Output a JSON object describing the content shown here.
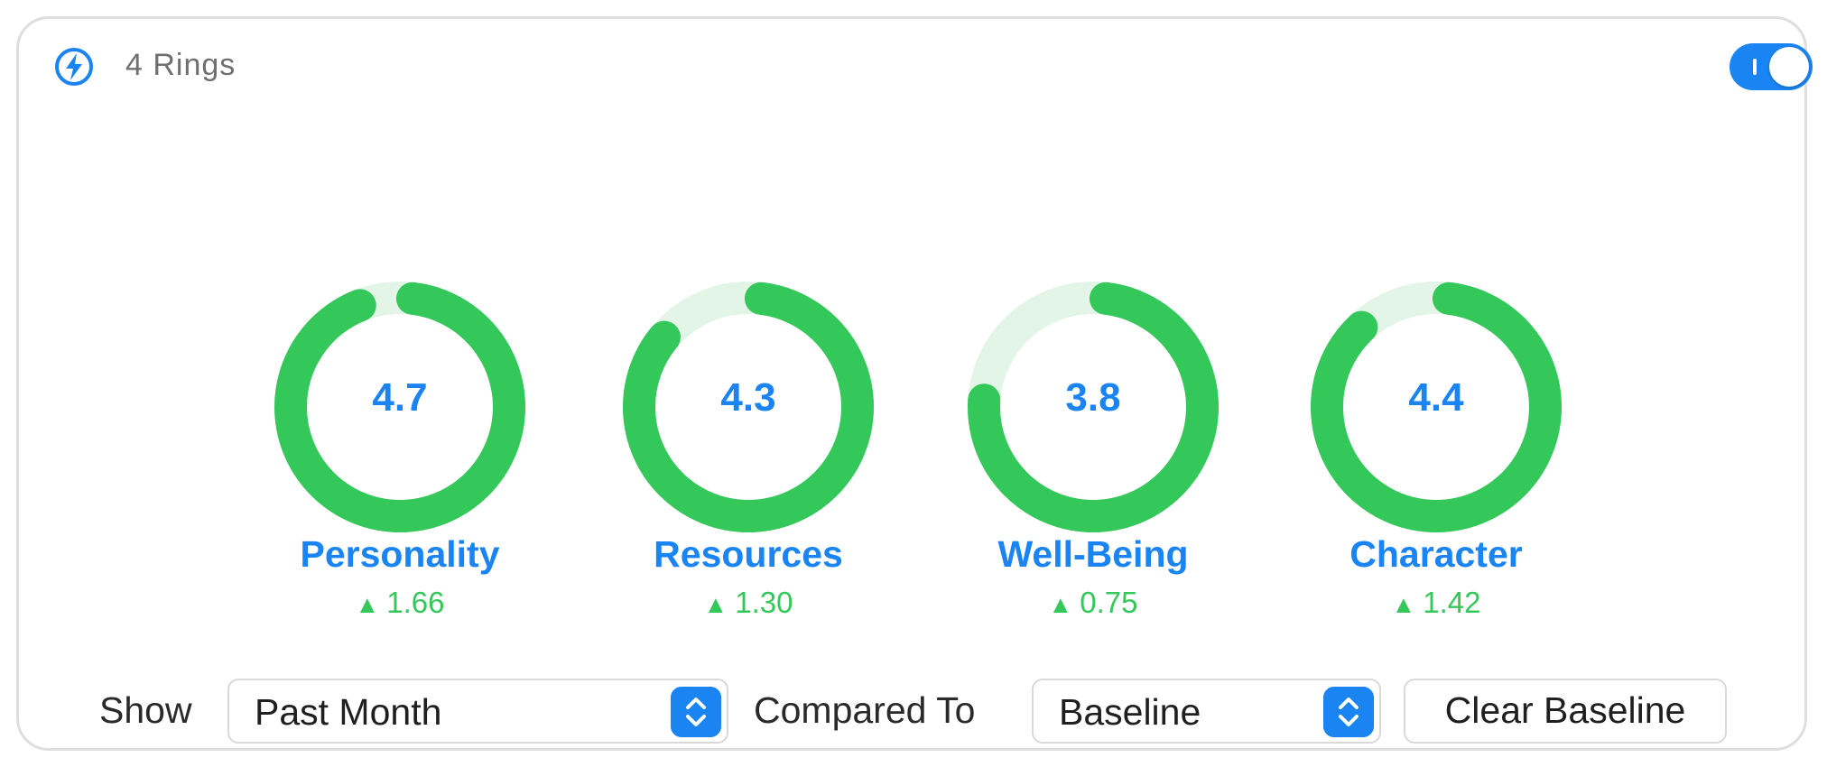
{
  "header": {
    "title": "4 Rings",
    "icon": "lightning-bolt-icon",
    "toggle_on": true
  },
  "colors": {
    "accent": "#1a84f2",
    "ring": "#34c759",
    "ring_track": "#e3f5e7",
    "positive": "#34c759"
  },
  "rings": [
    {
      "value": "4.7",
      "label": "Personality",
      "delta": "1.66",
      "progress": 0.94
    },
    {
      "value": "4.3",
      "label": "Resources",
      "delta": "1.30",
      "progress": 0.86
    },
    {
      "value": "3.8",
      "label": "Well-Being",
      "delta": "0.75",
      "progress": 0.76
    },
    {
      "value": "4.4",
      "label": "Character",
      "delta": "1.42",
      "progress": 0.88
    }
  ],
  "controls": {
    "show_label": "Show",
    "show_value": "Past Month",
    "compared_label": "Compared To",
    "compared_value": "Baseline",
    "clear_button": "Clear Baseline"
  }
}
